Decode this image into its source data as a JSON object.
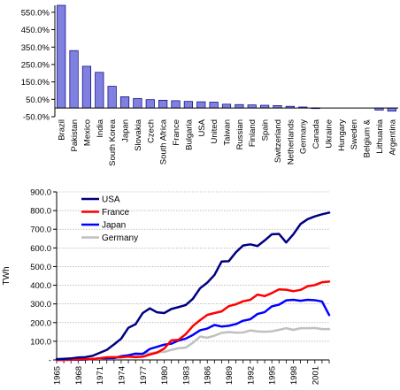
{
  "chart_data": [
    {
      "type": "bar",
      "categories": [
        "Brazil",
        "Pakistan",
        "Mexico",
        "India",
        "South Korea",
        "Japan",
        "Slovakia",
        "Czech",
        "South Africa",
        "France",
        "Bulgaria",
        "USA",
        "United",
        "Taiwan",
        "Russian",
        "Finland",
        "Spain",
        "Switzerland",
        "Netherlands",
        "Germany",
        "Canada",
        "Ukraine",
        "Hungary",
        "Sweden",
        "Belgium &",
        "Lithuania",
        "Argentina"
      ],
      "values": [
        590,
        330,
        240,
        205,
        125,
        65,
        55,
        48,
        45,
        42,
        38,
        36,
        34,
        22,
        20,
        18,
        16,
        14,
        10,
        6,
        1,
        0,
        0,
        0,
        0,
        -12,
        -18
      ],
      "ylim": [
        -50,
        590
      ],
      "yticks": [
        "-50.0%",
        "50.0%",
        "150.0%",
        "250.0%",
        "350.0%",
        "450.0%",
        "550.0%"
      ],
      "ytick_values": [
        -50,
        50,
        150,
        250,
        350,
        450,
        550
      ],
      "bar_color": "#8080e0",
      "grid": false
    },
    {
      "type": "line",
      "ylabel": "TWh",
      "ylim": [
        0,
        900
      ],
      "yticks": [
        "-",
        "100.0",
        "200.0",
        "300.0",
        "400.0",
        "500.0",
        "600.0",
        "700.0",
        "800.0",
        "900.0"
      ],
      "ytick_values": [
        0,
        100,
        200,
        300,
        400,
        500,
        600,
        700,
        800,
        900
      ],
      "xlim": [
        1965,
        2003
      ],
      "xticks": [
        "1965",
        "1968",
        "1971",
        "1974",
        "1977",
        "1980",
        "1983",
        "1986",
        "1989",
        "1992",
        "1995",
        "1998",
        "2001"
      ],
      "xtick_values": [
        1965,
        1968,
        1971,
        1974,
        1977,
        1980,
        1983,
        1986,
        1989,
        1992,
        1995,
        1998,
        2001
      ],
      "legend_placement": "top-left",
      "grid": "horizontal",
      "x": [
        1965,
        1966,
        1967,
        1968,
        1969,
        1970,
        1971,
        1972,
        1973,
        1974,
        1975,
        1976,
        1977,
        1978,
        1979,
        1980,
        1981,
        1982,
        1983,
        1984,
        1985,
        1986,
        1987,
        1988,
        1989,
        1990,
        1991,
        1992,
        1993,
        1994,
        1995,
        1996,
        1997,
        1998,
        1999,
        2000,
        2001,
        2002,
        2003
      ],
      "series": [
        {
          "name": "USA",
          "color": "#000080",
          "values": [
            4,
            6,
            8,
            13,
            15,
            22,
            38,
            54,
            83,
            114,
            172,
            191,
            251,
            276,
            255,
            251,
            273,
            283,
            294,
            328,
            384,
            414,
            455,
            527,
            529,
            577,
            613,
            619,
            610,
            640,
            673,
            675,
            629,
            673,
            728,
            754,
            769,
            780,
            789
          ]
        },
        {
          "name": "France",
          "color": "#ff0000",
          "values": [
            1,
            1,
            2,
            3,
            4,
            5,
            9,
            14,
            15,
            15,
            18,
            15,
            17,
            29,
            39,
            61,
            105,
            108,
            138,
            182,
            213,
            241,
            251,
            260,
            288,
            298,
            314,
            322,
            350,
            342,
            358,
            378,
            376,
            368,
            375,
            395,
            401,
            416,
            420
          ]
        },
        {
          "name": "Japan",
          "color": "#0000ff",
          "values": [
            0,
            0,
            1,
            1,
            2,
            5,
            8,
            10,
            10,
            20,
            25,
            34,
            32,
            59,
            70,
            82,
            87,
            104,
            114,
            134,
            159,
            168,
            187,
            179,
            183,
            192,
            210,
            218,
            246,
            256,
            287,
            296,
            319,
            322,
            317,
            322,
            320,
            313,
            240
          ]
        },
        {
          "name": "Germany",
          "color": "#c0c0c0",
          "values": [
            0,
            0,
            1,
            2,
            5,
            6,
            6,
            9,
            12,
            12,
            21,
            24,
            36,
            35,
            42,
            43,
            54,
            63,
            66,
            92,
            125,
            119,
            130,
            145,
            149,
            146,
            147,
            158,
            153,
            151,
            153,
            161,
            170,
            161,
            170,
            170,
            171,
            165,
            165
          ]
        }
      ]
    }
  ]
}
